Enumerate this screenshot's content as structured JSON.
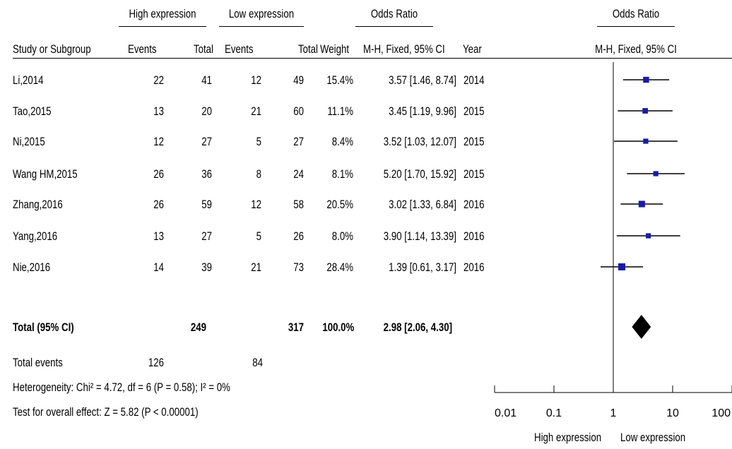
{
  "header": {
    "group1": "High expression",
    "group2": "Low expression",
    "or_title": "Odds Ratio",
    "or_title2": "Odds Ratio",
    "cols": {
      "study": "Study or Subgroup",
      "events1": "Events",
      "total1": "Total",
      "events2": "Events",
      "total2": "Total",
      "weight": "Weight",
      "ci": "M-H, Fixed, 95% CI",
      "year": "Year",
      "ci2": "M-H, Fixed, 95% CI"
    }
  },
  "studies": [
    {
      "name": "Li,2014",
      "e1": "22",
      "t1": "41",
      "e2": "12",
      "t2": "49",
      "weight": "15.4%",
      "ci": "3.57 [1.46, 8.74]",
      "year": "2014"
    },
    {
      "name": "Tao,2015",
      "e1": "13",
      "t1": "20",
      "e2": "21",
      "t2": "60",
      "weight": "11.1%",
      "ci": "3.45 [1.19, 9.96]",
      "year": "2015"
    },
    {
      "name": "Ni,2015",
      "e1": "12",
      "t1": "27",
      "e2": "5",
      "t2": "27",
      "weight": "8.4%",
      "ci": "3.52 [1.03, 12.07]",
      "year": "2015"
    },
    {
      "name": "Wang HM,2015",
      "e1": "26",
      "t1": "36",
      "e2": "8",
      "t2": "24",
      "weight": "8.1%",
      "ci": "5.20 [1.70, 15.92]",
      "year": "2015"
    },
    {
      "name": "Zhang,2016",
      "e1": "26",
      "t1": "59",
      "e2": "12",
      "t2": "58",
      "weight": "20.5%",
      "ci": "3.02 [1.33, 6.84]",
      "year": "2016"
    },
    {
      "name": "Yang,2016",
      "e1": "13",
      "t1": "27",
      "e2": "5",
      "t2": "26",
      "weight": "8.0%",
      "ci": "3.90 [1.14, 13.39]",
      "year": "2016"
    },
    {
      "name": "Nie,2016",
      "e1": "14",
      "t1": "39",
      "e2": "21",
      "t2": "73",
      "weight": "28.4%",
      "ci": "1.39 [0.61, 3.17]",
      "year": "2016"
    }
  ],
  "total": {
    "label": "Total (95% CI)",
    "t1": "249",
    "t2": "317",
    "weight": "100.0%",
    "ci": "2.98 [2.06, 4.30]"
  },
  "events": {
    "label": "Total events",
    "e1": "126",
    "e2": "84"
  },
  "heterogeneity": "Heterogeneity: Chi² = 4.72, df = 6 (P = 0.58); I² = 0%",
  "overall_effect": "Test for overall effect: Z = 5.82 (P < 0.00001)",
  "axis": {
    "favours_left": "High expression",
    "favours_right": "Low expression"
  },
  "colors": {
    "marker": "#1a1aa6",
    "line": "#000000"
  },
  "chart_data": {
    "type": "forest",
    "scale": "log",
    "xlim": [
      0.01,
      100
    ],
    "ticks": [
      0.01,
      0.1,
      1,
      10,
      100
    ],
    "tick_labels": [
      "0.01",
      "0.1",
      "1",
      "10",
      "100"
    ],
    "null_line": 1,
    "estimates": [
      {
        "study": "Li,2014",
        "or": 3.57,
        "lo": 1.46,
        "hi": 8.74,
        "weight": 15.4
      },
      {
        "study": "Tao,2015",
        "or": 3.45,
        "lo": 1.19,
        "hi": 9.96,
        "weight": 11.1
      },
      {
        "study": "Ni,2015",
        "or": 3.52,
        "lo": 1.03,
        "hi": 12.07,
        "weight": 8.4
      },
      {
        "study": "Wang HM,2015",
        "or": 5.2,
        "lo": 1.7,
        "hi": 15.92,
        "weight": 8.1
      },
      {
        "study": "Zhang,2016",
        "or": 3.02,
        "lo": 1.33,
        "hi": 6.84,
        "weight": 20.5
      },
      {
        "study": "Yang,2016",
        "or": 3.9,
        "lo": 1.14,
        "hi": 13.39,
        "weight": 8.0
      },
      {
        "study": "Nie,2016",
        "or": 1.39,
        "lo": 0.61,
        "hi": 3.17,
        "weight": 28.4
      }
    ],
    "pooled": {
      "or": 2.98,
      "lo": 2.06,
      "hi": 4.3
    }
  }
}
